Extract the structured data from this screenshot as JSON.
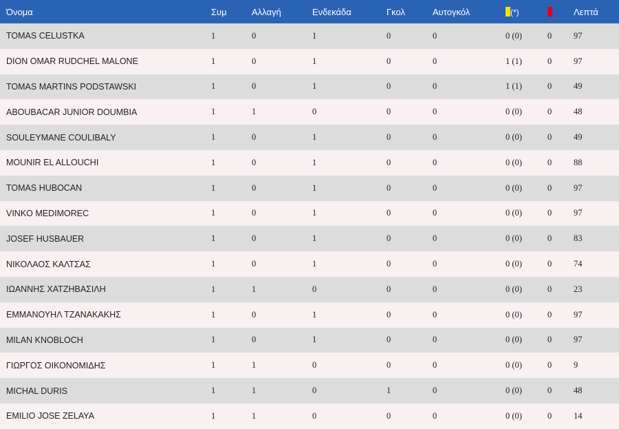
{
  "colors": {
    "header_bg": "#2b63b4",
    "row_odd": "#dcdcdc",
    "row_even": "#f8f0f1",
    "yellow_card": "#f2e600",
    "red_card": "#e0001a"
  },
  "header": {
    "name": "Όνομα",
    "appearances": "Συμ",
    "substitute": "Αλλαγή",
    "starting": "Ενδεκάδα",
    "goals": "Γκολ",
    "own_goals": "Αυτογκόλ",
    "yellow_icon": "yellow-card-icon",
    "yellow_suffix": "(*)",
    "red_icon": "red-card-icon",
    "minutes": "Λεπτά"
  },
  "players": [
    {
      "name": "TOMAS CELUSTKA",
      "apps": "1",
      "sub": "0",
      "start": "1",
      "goals": "0",
      "own": "0",
      "yellow": "0 (0)",
      "red": "0",
      "minutes": "97"
    },
    {
      "name": "DION OMAR RUDCHEL MALONE",
      "apps": "1",
      "sub": "0",
      "start": "1",
      "goals": "0",
      "own": "0",
      "yellow": "1 (1)",
      "red": "0",
      "minutes": "97"
    },
    {
      "name": "TOMAS MARTINS PODSTAWSKI",
      "apps": "1",
      "sub": "0",
      "start": "1",
      "goals": "0",
      "own": "0",
      "yellow": "1 (1)",
      "red": "0",
      "minutes": "49"
    },
    {
      "name": "ABOUBACAR JUNIOR DOUMBIA",
      "apps": "1",
      "sub": "1",
      "start": "0",
      "goals": "0",
      "own": "0",
      "yellow": "0 (0)",
      "red": "0",
      "minutes": "48"
    },
    {
      "name": "SOULEYMANE COULIBALY",
      "apps": "1",
      "sub": "0",
      "start": "1",
      "goals": "0",
      "own": "0",
      "yellow": "0 (0)",
      "red": "0",
      "minutes": "49"
    },
    {
      "name": "MOUNIR EL ALLOUCHI",
      "apps": "1",
      "sub": "0",
      "start": "1",
      "goals": "0",
      "own": "0",
      "yellow": "0 (0)",
      "red": "0",
      "minutes": "88"
    },
    {
      "name": "TOMAS HUBOCAN",
      "apps": "1",
      "sub": "0",
      "start": "1",
      "goals": "0",
      "own": "0",
      "yellow": "0 (0)",
      "red": "0",
      "minutes": "97"
    },
    {
      "name": "VINKO MEDIMOREC",
      "apps": "1",
      "sub": "0",
      "start": "1",
      "goals": "0",
      "own": "0",
      "yellow": "0 (0)",
      "red": "0",
      "minutes": "97"
    },
    {
      "name": "JOSEF HUSBAUER",
      "apps": "1",
      "sub": "0",
      "start": "1",
      "goals": "0",
      "own": "0",
      "yellow": "0 (0)",
      "red": "0",
      "minutes": "83"
    },
    {
      "name": "ΝΙΚΟΛΑΟΣ ΚΑΛΤΣΑΣ",
      "apps": "1",
      "sub": "0",
      "start": "1",
      "goals": "0",
      "own": "0",
      "yellow": "0 (0)",
      "red": "0",
      "minutes": "74"
    },
    {
      "name": "ΙΩΑΝΝΗΣ ΧΑΤΖΗΒΑΣΙΛΗ",
      "apps": "1",
      "sub": "1",
      "start": "0",
      "goals": "0",
      "own": "0",
      "yellow": "0 (0)",
      "red": "0",
      "minutes": "23"
    },
    {
      "name": "ΕΜΜΑΝΟΥΗΛ ΤΖΑΝΑΚΑΚΗΣ",
      "apps": "1",
      "sub": "0",
      "start": "1",
      "goals": "0",
      "own": "0",
      "yellow": "0 (0)",
      "red": "0",
      "minutes": "97"
    },
    {
      "name": "MILAN KNOBLOCH",
      "apps": "1",
      "sub": "0",
      "start": "1",
      "goals": "0",
      "own": "0",
      "yellow": "0 (0)",
      "red": "0",
      "minutes": "97"
    },
    {
      "name": "ΓΙΩΡΓΟΣ ΟΙΚΟΝΟΜΙΔΗΣ",
      "apps": "1",
      "sub": "1",
      "start": "0",
      "goals": "0",
      "own": "0",
      "yellow": "0 (0)",
      "red": "0",
      "minutes": "9"
    },
    {
      "name": "MICHAL DURIS",
      "apps": "1",
      "sub": "1",
      "start": "0",
      "goals": "1",
      "own": "0",
      "yellow": "0 (0)",
      "red": "0",
      "minutes": "48"
    },
    {
      "name": "EMILIO JOSE ZELAYA",
      "apps": "1",
      "sub": "1",
      "start": "0",
      "goals": "0",
      "own": "0",
      "yellow": "0 (0)",
      "red": "0",
      "minutes": "14"
    }
  ]
}
